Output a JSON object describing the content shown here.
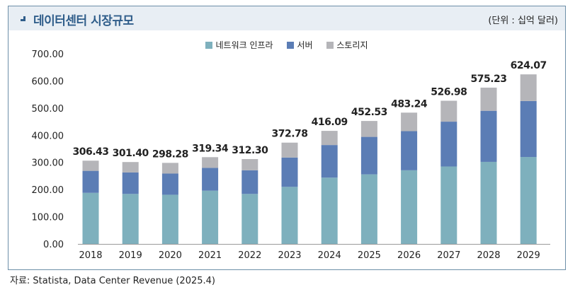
{
  "header": {
    "title": "데이터센터 시장규모",
    "unit": "(단위 : 십억 달러)",
    "icon": "arrow-down-right-icon"
  },
  "source": "자료: Statista, Data Center Revenue (2025.4)",
  "colors": {
    "network": "#7eb0bd",
    "server": "#5b7db5",
    "storage": "#b5b5b9",
    "title": "#2f5d8a",
    "frame": "#6d8fa8"
  },
  "chart_data": {
    "type": "bar",
    "stacked": true,
    "title": "데이터센터 시장규모",
    "xlabel": "",
    "ylabel": "(단위 : 십억 달러)",
    "ylim": [
      0,
      700
    ],
    "yticks": [
      "0.00",
      "100.00",
      "200.00",
      "300.00",
      "400.00",
      "500.00",
      "600.00",
      "700.00"
    ],
    "categories": [
      "2018",
      "2019",
      "2020",
      "2021",
      "2022",
      "2023",
      "2024",
      "2025",
      "2026",
      "2027",
      "2028",
      "2029"
    ],
    "series": [
      {
        "name": "네트워크 인프라",
        "values": [
          188,
          184,
          181,
          196,
          184,
          210,
          244,
          256,
          271,
          285,
          302,
          320
        ]
      },
      {
        "name": "서버",
        "values": [
          81,
          79,
          78,
          84,
          87,
          108,
          120,
          138,
          144,
          165,
          188,
          206
        ]
      },
      {
        "name": "스토리지",
        "values": [
          37.43,
          38.4,
          39.28,
          39.34,
          41.3,
          54.78,
          52.09,
          58.53,
          68.24,
          76.98,
          85.23,
          98.07
        ]
      }
    ],
    "totals": [
      "306.43",
      "301.40",
      "298.28",
      "319.34",
      "312.30",
      "372.78",
      "416.09",
      "452.53",
      "483.24",
      "526.98",
      "575.23",
      "624.07"
    ],
    "legend": "top-center"
  }
}
